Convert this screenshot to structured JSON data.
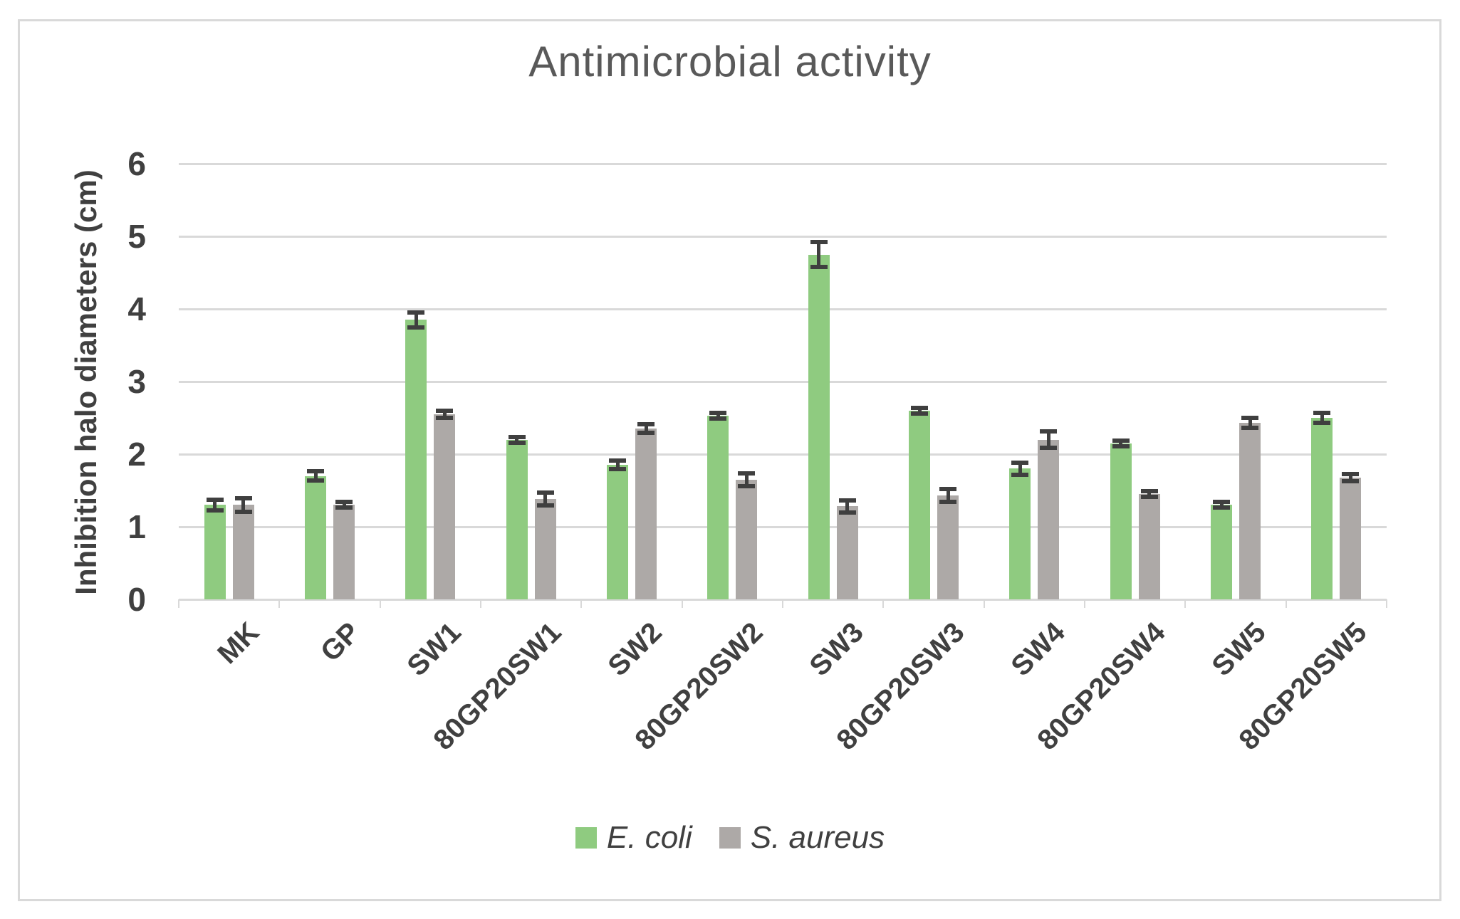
{
  "chart_data": {
    "type": "bar",
    "title": "Antimicrobial activity",
    "xlabel": "",
    "ylabel": "Inhibition halo diameters (cm)",
    "ylim": [
      0,
      6
    ],
    "yticks": [
      0,
      1,
      2,
      3,
      4,
      5,
      6
    ],
    "grid": true,
    "legend_position": "bottom",
    "error_bars": true,
    "categories": [
      "MK",
      "GP",
      "SW1",
      "80GP20SW1",
      "SW2",
      "80GP20SW2",
      "SW3",
      "80GP20SW3",
      "SW4",
      "80GP20SW4",
      "SW5",
      "80GP20SW5"
    ],
    "series": [
      {
        "name": "E. coli",
        "color": "#8FCB80",
        "values": [
          1.3,
          1.7,
          3.85,
          2.2,
          1.85,
          2.53,
          4.75,
          2.6,
          1.8,
          2.15,
          1.3,
          2.5
        ],
        "errors": [
          0.07,
          0.06,
          0.1,
          0.04,
          0.06,
          0.04,
          0.17,
          0.04,
          0.08,
          0.04,
          0.04,
          0.07
        ]
      },
      {
        "name": "S. aureus",
        "color": "#ADA9A7",
        "values": [
          1.3,
          1.3,
          2.55,
          1.38,
          2.35,
          1.65,
          1.28,
          1.43,
          2.2,
          1.45,
          2.43,
          1.68
        ],
        "errors": [
          0.09,
          0.04,
          0.05,
          0.09,
          0.06,
          0.09,
          0.08,
          0.09,
          0.11,
          0.04,
          0.07,
          0.05
        ]
      }
    ],
    "colors": {
      "gridline": "#D9D9D9",
      "frame_border": "#D9D9D9",
      "error_bar": "#3F3F3F",
      "axis_text": "#404040",
      "title_text": "#595959",
      "background": "#FFFFFF"
    }
  }
}
